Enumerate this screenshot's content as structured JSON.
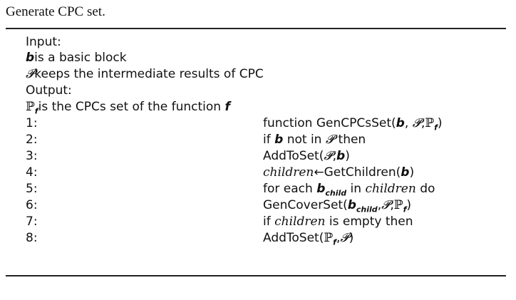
{
  "caption": "Generate CPC set.",
  "header": {
    "input_label": "Input:",
    "b_symbol": "b",
    "b_desc": "is a basic block",
    "p_symbol": "𝓟",
    "p_desc": "keeps the intermediate results of CPC",
    "output_label": "Output:",
    "pf_symbol": "ℙ",
    "pf_sub": "f",
    "pf_desc": "is the CPCs set of the function",
    "f_symbol": "f"
  },
  "steps": [
    {
      "num": "1:",
      "text": "function GenCPCsSet(b, 𝓟,ℙf)"
    },
    {
      "num": "2:",
      "text": "if b not in 𝓟 then"
    },
    {
      "num": "3:",
      "text": "AddToSet(𝓟,b)"
    },
    {
      "num": "4:",
      "text": "children←GetChildren(b)"
    },
    {
      "num": "5:",
      "text": "for each bchild in children do"
    },
    {
      "num": "6:",
      "text": "GenCoverSet(bchild,𝓟,ℙf)"
    },
    {
      "num": "7:",
      "text": "if children is empty then"
    },
    {
      "num": "8:",
      "text": "AddToSet(ℙf,𝓟)"
    }
  ],
  "parts": {
    "fn1": "function GenCPCsSet(",
    "s2a": "if ",
    "s2b": " not in ",
    "s2c": " then",
    "s3a": "AddToSet(",
    "children": "children",
    "s4b": "←GetChildren(",
    "s5a": "for each ",
    "child_sub": "child",
    "s5b": " in ",
    "s5c": " do",
    "s6a": "GenCoverSet(",
    "s7a": "if ",
    "s7b": " is empty then",
    "s8a": "AddToSet(",
    "lparen": "(",
    "rparen": ")",
    "comma": ",",
    "comma_sp": ", "
  }
}
